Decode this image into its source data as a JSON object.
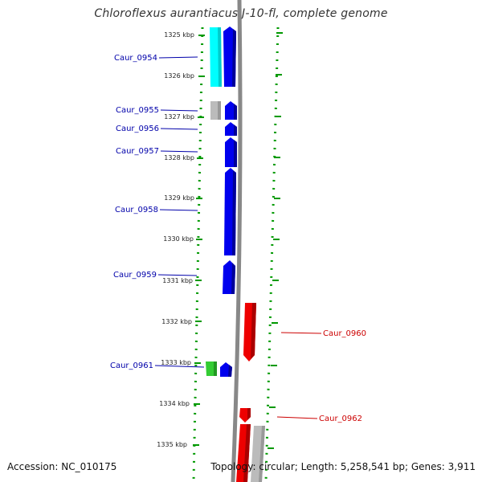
{
  "title": "Chloroflexus aurantiacus J-10-fl, complete genome",
  "accession_text": "Accession: NC_010175",
  "topology_text": "Topology: circular; Length: 5,258,541 bp; Genes: 3,911",
  "colors": {
    "forward_strand": "#0000ff",
    "reverse_strand": "#ff0000",
    "cyan_feature": "#00ffff",
    "green_feature": "#33cc33",
    "gray_feature": "#bbbbbb",
    "backbone": "#888888",
    "dot_track": "#009900",
    "forward_label": "#0000aa",
    "reverse_label": "#cc0000"
  },
  "scale": {
    "unit": "kbp",
    "ticks": [
      "1325 kbp",
      "1326 kbp",
      "1327 kbp",
      "1328 kbp",
      "1329 kbp",
      "1330 kbp",
      "1331 kbp",
      "1332 kbp",
      "1333 kbp",
      "1334 kbp",
      "1335 kbp"
    ]
  },
  "genes": [
    {
      "name": "Caur_0954",
      "strand": "forward",
      "label_side": "left"
    },
    {
      "name": "Caur_0955",
      "strand": "forward",
      "label_side": "left"
    },
    {
      "name": "Caur_0956",
      "strand": "forward",
      "label_side": "left"
    },
    {
      "name": "Caur_0957",
      "strand": "forward",
      "label_side": "left"
    },
    {
      "name": "Caur_0958",
      "strand": "forward",
      "label_side": "left"
    },
    {
      "name": "Caur_0959",
      "strand": "forward",
      "label_side": "left"
    },
    {
      "name": "Caur_0960",
      "strand": "reverse",
      "label_side": "right"
    },
    {
      "name": "Caur_0961",
      "strand": "forward",
      "label_side": "left"
    },
    {
      "name": "Caur_0962",
      "strand": "reverse",
      "label_side": "right"
    }
  ]
}
